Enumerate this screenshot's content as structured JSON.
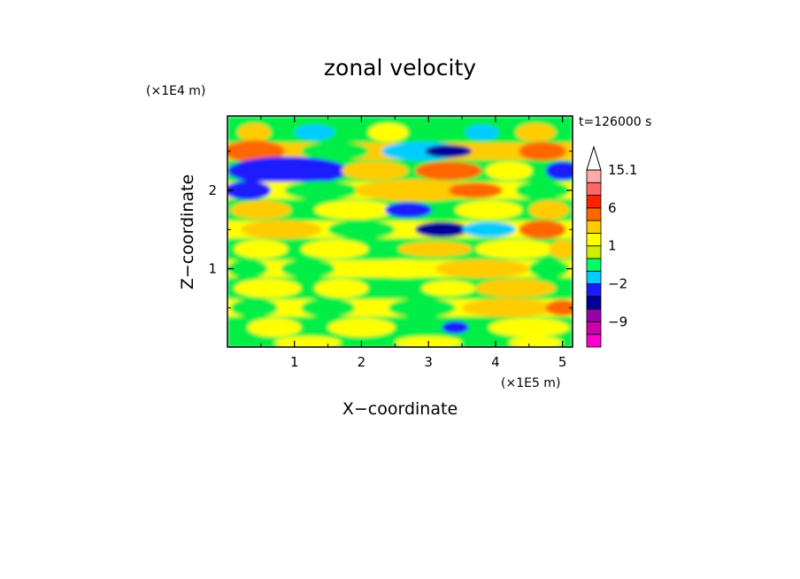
{
  "chart_data": {
    "type": "heatmap",
    "title": "zonal velocity",
    "xlabel": "X−coordinate",
    "ylabel": "Z−coordinate",
    "x_scale_note": "(×1E5 m)",
    "y_scale_note": "(×1E4 m)",
    "time_label": "t=126000 s",
    "xlim": [
      0,
      5.15
    ],
    "ylim": [
      0,
      2.95
    ],
    "x_ticks": [
      1,
      2,
      3,
      4,
      5
    ],
    "y_ticks": [
      1,
      2
    ],
    "x_tick_labels": [
      "1",
      "2",
      "3",
      "4",
      "5"
    ],
    "y_tick_labels": [
      "1",
      "2"
    ],
    "colorbar": {
      "levels_bottom_to_top": [
        "#ff00cc",
        "#cc00aa",
        "#9900aa",
        "#000099",
        "#1a1aff",
        "#00ccff",
        "#00ff66",
        "#ccee00",
        "#ffff00",
        "#ffcc00",
        "#ff6600",
        "#ff2200",
        "#ff6666",
        "#ffaaaa"
      ],
      "tick_labels": [
        "15.1",
        "6",
        "1",
        "−2",
        "−9"
      ],
      "tick_level_index": [
        14,
        11,
        8,
        5,
        2
      ]
    },
    "bands": [
      {
        "z": 2.74,
        "dz": 0.22,
        "base": "#00ee44",
        "blobs": [
          [
            0.4,
            0.25,
            0.12,
            "#ffcc00"
          ],
          [
            1.3,
            0.3,
            0.1,
            "#00ccff"
          ],
          [
            2.4,
            0.3,
            0.12,
            "#ffff00"
          ],
          [
            3.8,
            0.25,
            0.1,
            "#00ccff"
          ],
          [
            4.6,
            0.3,
            0.12,
            "#ffcc00"
          ]
        ]
      },
      {
        "z": 2.5,
        "dz": 0.22,
        "base": "#ffcc00",
        "blobs": [
          [
            0.4,
            0.45,
            0.14,
            "#ff6600"
          ],
          [
            1.6,
            0.5,
            0.12,
            "#00ee44"
          ],
          [
            2.9,
            0.6,
            0.12,
            "#00ccff"
          ],
          [
            3.3,
            0.35,
            0.08,
            "#000099"
          ],
          [
            4.7,
            0.35,
            0.12,
            "#ff6600"
          ]
        ]
      },
      {
        "z": 2.25,
        "dz": 0.22,
        "base": "#00ee44",
        "blobs": [
          [
            0.9,
            0.55,
            0.13,
            "#000099"
          ],
          [
            0.9,
            0.9,
            0.18,
            "#1a1aff"
          ],
          [
            2.2,
            0.5,
            0.12,
            "#ffcc00"
          ],
          [
            3.3,
            0.5,
            0.12,
            "#ff6600"
          ],
          [
            4.2,
            0.35,
            0.12,
            "#ffff00"
          ],
          [
            5.0,
            0.25,
            0.12,
            "#1a1aff"
          ]
        ]
      },
      {
        "z": 2.0,
        "dz": 0.22,
        "base": "#ffff00",
        "blobs": [
          [
            0.3,
            0.35,
            0.12,
            "#1a1aff"
          ],
          [
            1.4,
            0.55,
            0.12,
            "#00ee44"
          ],
          [
            2.8,
            0.9,
            0.14,
            "#ffcc00"
          ],
          [
            3.7,
            0.4,
            0.1,
            "#ff6600"
          ],
          [
            4.7,
            0.4,
            0.12,
            "#00ee44"
          ]
        ]
      },
      {
        "z": 1.75,
        "dz": 0.22,
        "base": "#00ee44",
        "blobs": [
          [
            0.5,
            0.45,
            0.12,
            "#ffcc00"
          ],
          [
            1.9,
            0.6,
            0.12,
            "#ffff00"
          ],
          [
            2.7,
            0.35,
            0.1,
            "#1a1aff"
          ],
          [
            3.9,
            0.5,
            0.12,
            "#ffff00"
          ],
          [
            4.8,
            0.3,
            0.12,
            "#ffcc00"
          ]
        ]
      },
      {
        "z": 1.5,
        "dz": 0.22,
        "base": "#ffff00",
        "blobs": [
          [
            0.8,
            0.6,
            0.12,
            "#ffcc00"
          ],
          [
            2.0,
            0.5,
            0.12,
            "#00ee44"
          ],
          [
            3.2,
            0.4,
            0.1,
            "#000099"
          ],
          [
            3.9,
            0.4,
            0.1,
            "#00ccff"
          ],
          [
            4.7,
            0.35,
            0.12,
            "#ff6600"
          ]
        ]
      },
      {
        "z": 1.25,
        "dz": 0.22,
        "base": "#00ee44",
        "blobs": [
          [
            0.5,
            0.4,
            0.12,
            "#ffff00"
          ],
          [
            1.6,
            0.5,
            0.12,
            "#ffff00"
          ],
          [
            3.1,
            0.55,
            0.1,
            "#ffcc00"
          ],
          [
            4.3,
            0.6,
            0.12,
            "#ffff00"
          ],
          [
            5.0,
            0.2,
            0.12,
            "#ffcc00"
          ]
        ]
      },
      {
        "z": 1.0,
        "dz": 0.22,
        "base": "#ffff00",
        "blobs": [
          [
            0.3,
            0.3,
            0.12,
            "#00ee44"
          ],
          [
            1.2,
            0.4,
            0.12,
            "#00ee44"
          ],
          [
            2.6,
            0.55,
            0.12,
            "#ffff00"
          ],
          [
            3.8,
            0.7,
            0.12,
            "#ffcc00"
          ],
          [
            4.8,
            0.3,
            0.12,
            "#00ee44"
          ]
        ]
      },
      {
        "z": 0.75,
        "dz": 0.22,
        "base": "#00ee44",
        "blobs": [
          [
            0.6,
            0.5,
            0.12,
            "#ffff00"
          ],
          [
            1.7,
            0.4,
            0.12,
            "#ffff00"
          ],
          [
            3.3,
            0.4,
            0.1,
            "#ffff00"
          ],
          [
            4.3,
            0.6,
            0.12,
            "#ffcc00"
          ]
        ]
      },
      {
        "z": 0.5,
        "dz": 0.22,
        "base": "#ffff00",
        "blobs": [
          [
            0.4,
            0.35,
            0.12,
            "#00ee44"
          ],
          [
            1.5,
            0.4,
            0.12,
            "#00ee44"
          ],
          [
            2.9,
            0.5,
            0.12,
            "#00ee44"
          ],
          [
            4.2,
            0.7,
            0.12,
            "#ffcc00"
          ],
          [
            5.0,
            0.25,
            0.1,
            "#ff6600"
          ]
        ]
      },
      {
        "z": 0.25,
        "dz": 0.22,
        "base": "#00ee44",
        "blobs": [
          [
            0.7,
            0.4,
            0.12,
            "#ffff00"
          ],
          [
            2.0,
            0.5,
            0.12,
            "#ffff00"
          ],
          [
            3.4,
            0.2,
            0.08,
            "#1a1aff"
          ],
          [
            4.5,
            0.6,
            0.12,
            "#ffff00"
          ]
        ]
      },
      {
        "z": 0.06,
        "dz": 0.14,
        "base": "#00ee44",
        "blobs": [
          [
            1.2,
            0.5,
            0.08,
            "#ffff00"
          ],
          [
            3.0,
            0.5,
            0.08,
            "#ffff00"
          ],
          [
            4.6,
            0.4,
            0.08,
            "#ffff00"
          ]
        ]
      }
    ]
  }
}
